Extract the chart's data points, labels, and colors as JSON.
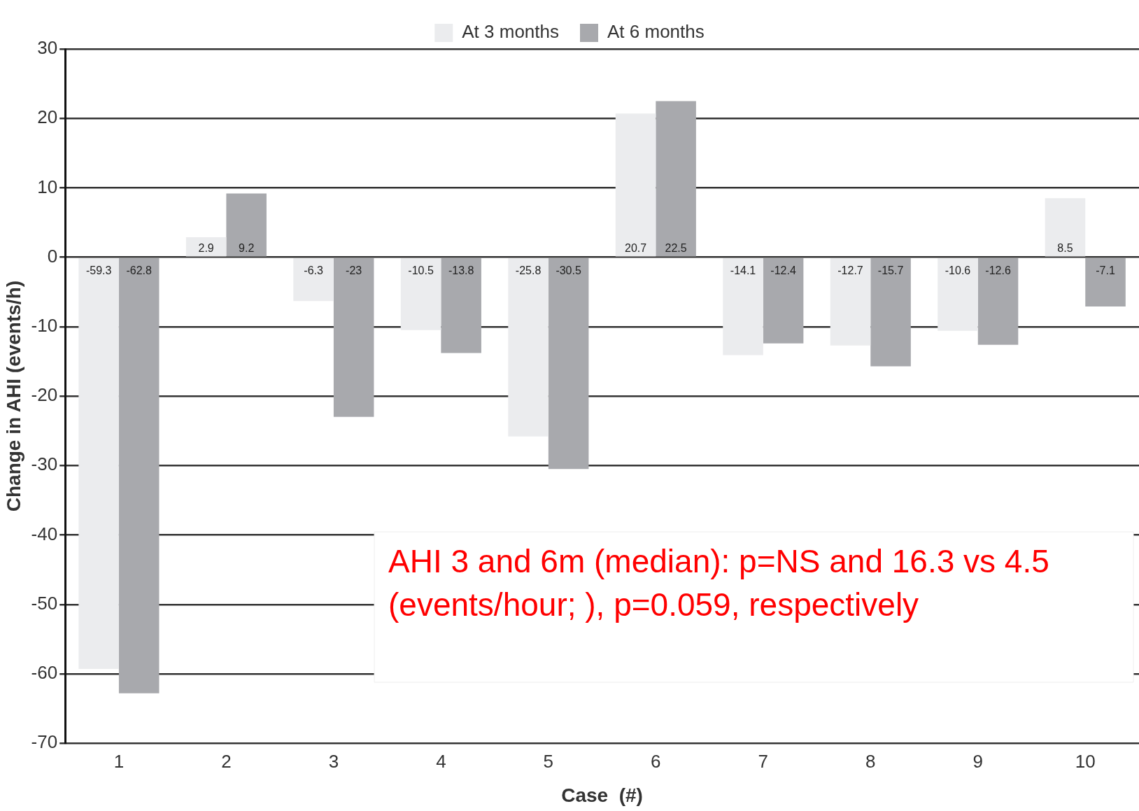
{
  "chart_data": {
    "type": "bar",
    "xlabel": "Case  (#)",
    "ylabel": "Change in AHI (events/h)",
    "categories": [
      "1",
      "2",
      "3",
      "4",
      "5",
      "6",
      "7",
      "8",
      "9",
      "10"
    ],
    "series": [
      {
        "name": "At 3 months",
        "color": "#ebecee",
        "values": [
          -59.3,
          2.9,
          -6.3,
          -10.5,
          -25.8,
          20.7,
          -14.1,
          -12.7,
          -10.6,
          8.5
        ]
      },
      {
        "name": "At 6 months",
        "color": "#a8a9ad",
        "values": [
          -62.8,
          9.2,
          -23,
          -13.8,
          -30.5,
          22.5,
          -12.4,
          -15.7,
          -12.6,
          -7.1
        ]
      }
    ],
    "ylim": [
      -70,
      30
    ],
    "yticks": [
      -70,
      -60,
      -50,
      -40,
      -30,
      -20,
      -10,
      0,
      10,
      20,
      30
    ],
    "grid": "y",
    "legend": "top",
    "data_labels": true,
    "annotations": [
      "AHI 3 and 6m (median): p=NS and 16.3 vs 4.5 (events/hour; ), p=0.059, respectively"
    ]
  }
}
